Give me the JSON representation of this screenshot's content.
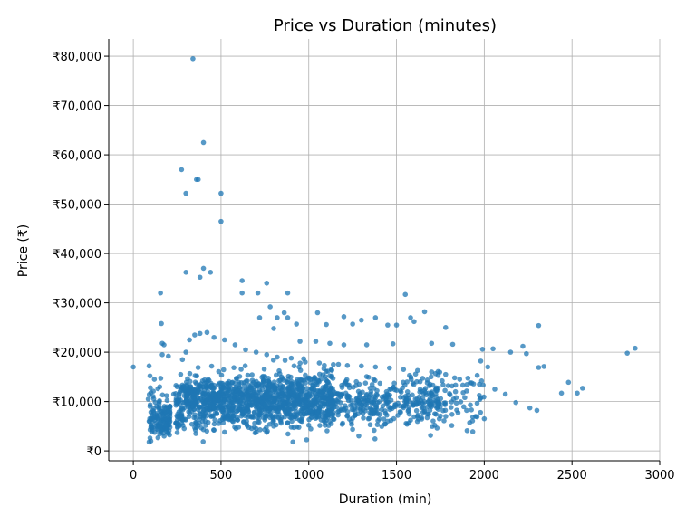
{
  "chart_data": {
    "type": "scatter",
    "title": "Price vs Duration (minutes)",
    "xlabel": "Duration (min)",
    "ylabel": "Price (₹)",
    "xlim": [
      -140,
      3000
    ],
    "ylim": [
      -2000,
      83500
    ],
    "x_ticks": [
      {
        "value": 0,
        "label": "0"
      },
      {
        "value": 500,
        "label": "500"
      },
      {
        "value": 1000,
        "label": "1000"
      },
      {
        "value": 1500,
        "label": "1500"
      },
      {
        "value": 2000,
        "label": "2000"
      },
      {
        "value": 2500,
        "label": "2500"
      },
      {
        "value": 3000,
        "label": "3000"
      }
    ],
    "y_ticks": [
      {
        "value": 0,
        "label": "₹0"
      },
      {
        "value": 10000,
        "label": "₹10,000"
      },
      {
        "value": 20000,
        "label": "₹20,000"
      },
      {
        "value": 30000,
        "label": "₹30,000"
      },
      {
        "value": 40000,
        "label": "₹40,000"
      },
      {
        "value": 50000,
        "label": "₹50,000"
      },
      {
        "value": 60000,
        "label": "₹60,000"
      },
      {
        "value": 70000,
        "label": "₹70,000"
      },
      {
        "value": 80000,
        "label": "₹80,000"
      }
    ],
    "grid": true,
    "marker_color": "#1f77b4",
    "marker_opacity": 0.75,
    "points": [
      [
        0,
        17000
      ],
      [
        340,
        79500
      ],
      [
        400,
        62500
      ],
      [
        275,
        57000
      ],
      [
        360,
        55000
      ],
      [
        370,
        55000
      ],
      [
        300,
        52200
      ],
      [
        500,
        52200
      ],
      [
        500,
        46500
      ],
      [
        400,
        37000
      ],
      [
        440,
        36200
      ],
      [
        300,
        36200
      ],
      [
        380,
        35200
      ],
      [
        620,
        34500
      ],
      [
        760,
        34000
      ],
      [
        155,
        32000
      ],
      [
        620,
        32000
      ],
      [
        710,
        32000
      ],
      [
        880,
        32000
      ],
      [
        1550,
        31700
      ],
      [
        1660,
        28200
      ],
      [
        1050,
        28000
      ],
      [
        860,
        28000
      ],
      [
        780,
        29200
      ],
      [
        820,
        27000
      ],
      [
        880,
        27000
      ],
      [
        1200,
        27200
      ],
      [
        1300,
        26500
      ],
      [
        1380,
        27000
      ],
      [
        1450,
        25500
      ],
      [
        1500,
        25500
      ],
      [
        1580,
        27000
      ],
      [
        1780,
        25000
      ],
      [
        1600,
        26200
      ],
      [
        2310,
        25400
      ],
      [
        160,
        25800
      ],
      [
        165,
        21800
      ],
      [
        175,
        21500
      ],
      [
        165,
        19500
      ],
      [
        200,
        19200
      ],
      [
        1250,
        25700
      ],
      [
        1100,
        25600
      ],
      [
        930,
        25700
      ],
      [
        720,
        27000
      ],
      [
        800,
        24800
      ],
      [
        950,
        22200
      ],
      [
        1040,
        22200
      ],
      [
        1120,
        21800
      ],
      [
        1200,
        21500
      ],
      [
        1330,
        21500
      ],
      [
        1480,
        21700
      ],
      [
        1700,
        21800
      ],
      [
        1820,
        21600
      ],
      [
        1990,
        20600
      ],
      [
        2050,
        20700
      ],
      [
        2150,
        20000
      ],
      [
        2220,
        21200
      ],
      [
        2240,
        19700
      ],
      [
        2310,
        16900
      ],
      [
        2340,
        17100
      ],
      [
        2440,
        11700
      ],
      [
        2480,
        13900
      ],
      [
        2530,
        11700
      ],
      [
        2560,
        12700
      ],
      [
        2815,
        19800
      ],
      [
        2860,
        20800
      ],
      [
        2000,
        6500
      ],
      [
        2300,
        8200
      ],
      [
        2260,
        8700
      ],
      [
        2180,
        9800
      ],
      [
        2120,
        11500
      ],
      [
        2060,
        12500
      ],
      [
        1960,
        15300
      ],
      [
        1920,
        13800
      ],
      [
        1880,
        11800
      ],
      [
        1840,
        10800
      ],
      [
        1980,
        18200
      ],
      [
        2020,
        17000
      ],
      [
        1760,
        14200
      ],
      [
        1700,
        9200
      ],
      [
        1650,
        7800
      ],
      [
        1600,
        6900
      ],
      [
        1560,
        5400
      ],
      [
        1450,
        6000
      ],
      [
        1350,
        5300
      ],
      [
        1250,
        6600
      ],
      [
        1120,
        6000
      ],
      [
        1000,
        5200
      ],
      [
        900,
        4800
      ],
      [
        800,
        5000
      ],
      [
        700,
        4500
      ],
      [
        600,
        4800
      ],
      [
        520,
        3800
      ],
      [
        460,
        4200
      ],
      [
        400,
        4300
      ],
      [
        350,
        4700
      ],
      [
        290,
        4500
      ],
      [
        250,
        3700
      ],
      [
        200,
        3500
      ],
      [
        150,
        3400
      ],
      [
        100,
        2000
      ],
      [
        90,
        1800
      ],
      [
        95,
        2600
      ],
      [
        100,
        4800
      ],
      [
        90,
        6000
      ],
      [
        95,
        9000
      ],
      [
        85,
        10500
      ],
      [
        100,
        11800
      ],
      [
        95,
        15200
      ],
      [
        90,
        17200
      ],
      [
        120,
        14500
      ],
      [
        140,
        12600
      ],
      [
        160,
        8000
      ],
      [
        180,
        7500
      ],
      [
        210,
        9000
      ],
      [
        230,
        11500
      ],
      [
        250,
        13000
      ],
      [
        270,
        15500
      ],
      [
        280,
        18500
      ],
      [
        300,
        20000
      ],
      [
        320,
        22500
      ],
      [
        350,
        23500
      ],
      [
        380,
        23800
      ],
      [
        420,
        24000
      ],
      [
        460,
        23000
      ],
      [
        520,
        22500
      ],
      [
        580,
        21500
      ],
      [
        640,
        20500
      ],
      [
        700,
        20000
      ],
      [
        760,
        19500
      ],
      [
        820,
        19000
      ],
      [
        900,
        18800
      ],
      [
        980,
        18000
      ],
      [
        1060,
        17800
      ],
      [
        1140,
        17500
      ],
      [
        1220,
        17300
      ],
      [
        1300,
        17200
      ],
      [
        1380,
        17000
      ],
      [
        1460,
        16800
      ],
      [
        1540,
        16500
      ],
      [
        1620,
        16300
      ],
      [
        1700,
        16000
      ],
      [
        1780,
        15500
      ],
      [
        1860,
        14500
      ]
    ],
    "cluster": {
      "count": 1800,
      "seed": 20240611,
      "min_x": 90,
      "min_y": 1800,
      "max_y": 19000
    }
  }
}
